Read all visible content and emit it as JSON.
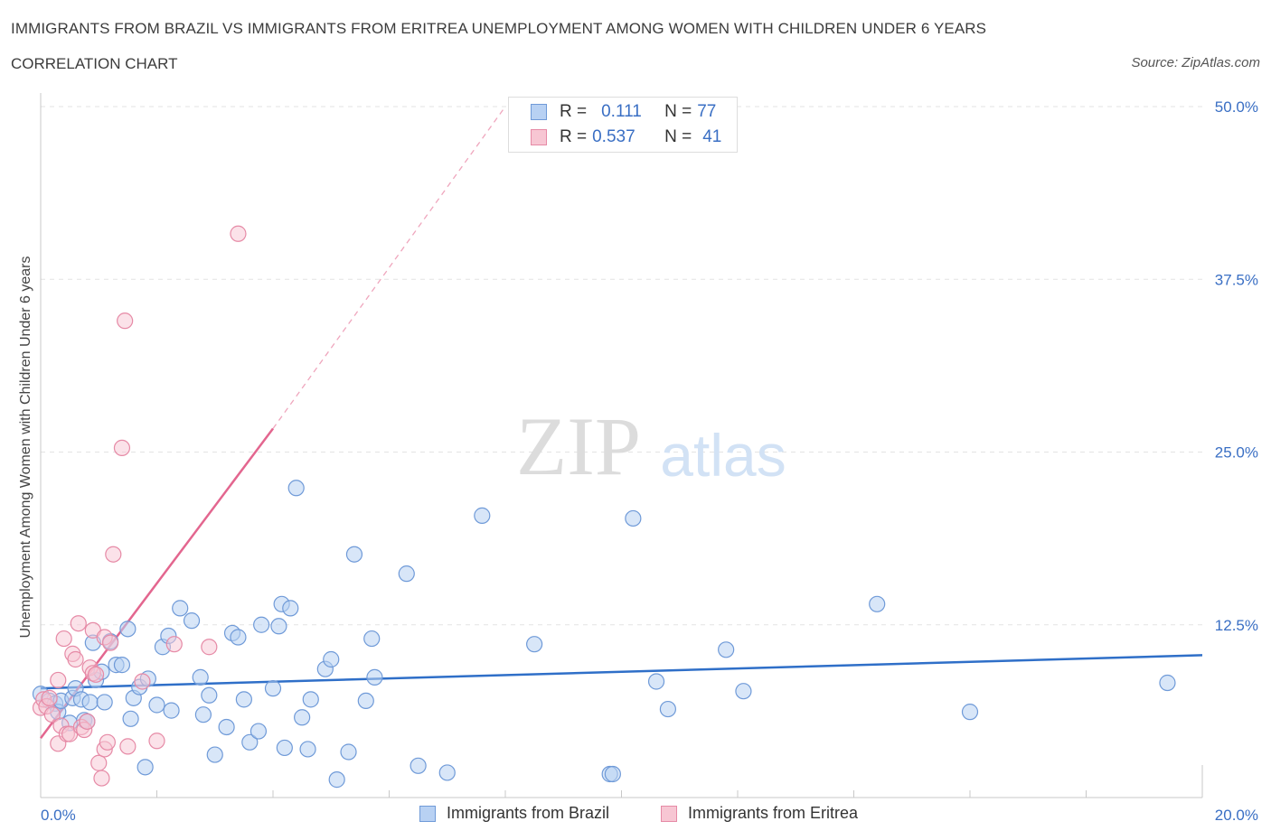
{
  "header": {
    "title": "IMMIGRANTS FROM BRAZIL VS IMMIGRANTS FROM ERITREA UNEMPLOYMENT AMONG WOMEN WITH CHILDREN UNDER 6 YEARS",
    "subtitle": "CORRELATION CHART",
    "source": "Source: ZipAtlas.com"
  },
  "watermark": {
    "zip": "ZIP",
    "atlas": "atlas"
  },
  "legend": {
    "brazil": {
      "r_label": "R =",
      "r_value": "0.111",
      "n_label": "N =",
      "n_value": "77"
    },
    "eritrea": {
      "r_label": "R =",
      "r_value": "0.537",
      "n_label": "N =",
      "n_value": "41"
    }
  },
  "colors": {
    "brazil_fill": "#b8d1f3",
    "brazil_stroke": "#6f9ad8",
    "brazil_line": "#2f6fc8",
    "eritrea_fill": "#f7c6d3",
    "eritrea_stroke": "#e68aa6",
    "eritrea_line": "#e3668f",
    "tick_label": "#3a6fc4",
    "grid": "#e3e3e3"
  },
  "chart_data": {
    "type": "scatter",
    "title": "IMMIGRANTS FROM BRAZIL VS IMMIGRANTS FROM ERITREA UNEMPLOYMENT AMONG WOMEN WITH CHILDREN UNDER 6 YEARS",
    "xlabel": "",
    "ylabel": "Unemployment Among Women with Children Under 6 years",
    "xlim": [
      0,
      20
    ],
    "ylim": [
      0,
      50
    ],
    "x_tick_labels": [
      "0.0%",
      "20.0%"
    ],
    "y_ticks": [
      12.5,
      25.0,
      37.5,
      50.0
    ],
    "y_tick_labels": [
      "12.5%",
      "25.0%",
      "37.5%",
      "50.0%"
    ],
    "grid": true,
    "legend_position": "top-center",
    "series": [
      {
        "name": "Immigrants from Brazil",
        "r": 0.111,
        "n": 77,
        "trend": {
          "x": [
            0,
            20
          ],
          "y": [
            7.9,
            10.3
          ],
          "dashed_extension": false
        },
        "points": [
          [
            0.0,
            7.5
          ],
          [
            0.15,
            7.0
          ],
          [
            0.25,
            6.8
          ],
          [
            0.3,
            6.2
          ],
          [
            0.35,
            7.0
          ],
          [
            0.5,
            5.4
          ],
          [
            0.55,
            7.2
          ],
          [
            0.6,
            7.9
          ],
          [
            0.7,
            7.1
          ],
          [
            0.75,
            5.6
          ],
          [
            0.8,
            5.5
          ],
          [
            0.85,
            6.9
          ],
          [
            0.9,
            11.2
          ],
          [
            0.95,
            8.5
          ],
          [
            1.05,
            9.1
          ],
          [
            1.1,
            6.9
          ],
          [
            1.2,
            11.3
          ],
          [
            1.3,
            9.6
          ],
          [
            1.4,
            9.6
          ],
          [
            1.5,
            12.2
          ],
          [
            1.55,
            5.7
          ],
          [
            1.6,
            7.2
          ],
          [
            1.7,
            8.0
          ],
          [
            1.8,
            2.2
          ],
          [
            1.85,
            8.6
          ],
          [
            2.0,
            6.7
          ],
          [
            2.1,
            10.9
          ],
          [
            2.2,
            11.7
          ],
          [
            2.25,
            6.3
          ],
          [
            2.4,
            13.7
          ],
          [
            2.6,
            12.8
          ],
          [
            2.75,
            8.7
          ],
          [
            2.8,
            6.0
          ],
          [
            2.9,
            7.4
          ],
          [
            3.0,
            3.1
          ],
          [
            3.2,
            5.1
          ],
          [
            3.3,
            11.9
          ],
          [
            3.4,
            11.6
          ],
          [
            3.5,
            7.1
          ],
          [
            3.6,
            4.0
          ],
          [
            3.75,
            4.8
          ],
          [
            3.8,
            12.5
          ],
          [
            4.0,
            7.9
          ],
          [
            4.1,
            12.4
          ],
          [
            4.15,
            14.0
          ],
          [
            4.2,
            3.6
          ],
          [
            4.3,
            13.7
          ],
          [
            4.4,
            22.4
          ],
          [
            4.5,
            5.8
          ],
          [
            4.6,
            3.5
          ],
          [
            4.65,
            7.1
          ],
          [
            4.9,
            9.3
          ],
          [
            5.0,
            10.0
          ],
          [
            5.1,
            1.3
          ],
          [
            5.3,
            3.3
          ],
          [
            5.4,
            17.6
          ],
          [
            5.6,
            7.0
          ],
          [
            5.7,
            11.5
          ],
          [
            5.75,
            8.7
          ],
          [
            6.3,
            16.2
          ],
          [
            6.5,
            2.3
          ],
          [
            7.0,
            1.8
          ],
          [
            7.6,
            20.4
          ],
          [
            8.5,
            11.1
          ],
          [
            9.8,
            1.7
          ],
          [
            9.85,
            1.7
          ],
          [
            10.2,
            20.2
          ],
          [
            10.6,
            8.4
          ],
          [
            10.8,
            6.4
          ],
          [
            11.8,
            10.7
          ],
          [
            12.1,
            7.7
          ],
          [
            14.4,
            14.0
          ],
          [
            16.0,
            6.2
          ],
          [
            19.4,
            8.3
          ]
        ]
      },
      {
        "name": "Immigrants from Eritrea",
        "r": 0.537,
        "n": 41,
        "trend": {
          "x": [
            0,
            4.0
          ],
          "y": [
            4.3,
            26.7
          ],
          "dashed_extension_to": [
            8.0,
            50.0
          ]
        },
        "points": [
          [
            0.0,
            6.5
          ],
          [
            0.05,
            7.1
          ],
          [
            0.1,
            6.6
          ],
          [
            0.15,
            7.2
          ],
          [
            0.2,
            6.0
          ],
          [
            0.3,
            8.5
          ],
          [
            0.3,
            3.9
          ],
          [
            0.35,
            5.2
          ],
          [
            0.4,
            11.5
          ],
          [
            0.45,
            4.6
          ],
          [
            0.5,
            4.6
          ],
          [
            0.55,
            10.4
          ],
          [
            0.6,
            10.0
          ],
          [
            0.65,
            12.6
          ],
          [
            0.7,
            5.1
          ],
          [
            0.75,
            4.9
          ],
          [
            0.8,
            5.5
          ],
          [
            0.85,
            9.4
          ],
          [
            0.9,
            9.0
          ],
          [
            0.9,
            12.1
          ],
          [
            0.95,
            8.9
          ],
          [
            1.0,
            2.5
          ],
          [
            1.05,
            1.4
          ],
          [
            1.1,
            11.6
          ],
          [
            1.1,
            3.5
          ],
          [
            1.15,
            4.0
          ],
          [
            1.2,
            11.2
          ],
          [
            1.25,
            17.6
          ],
          [
            1.4,
            25.3
          ],
          [
            1.45,
            34.5
          ],
          [
            1.5,
            3.7
          ],
          [
            1.75,
            8.4
          ],
          [
            2.0,
            4.1
          ],
          [
            2.3,
            11.1
          ],
          [
            2.9,
            10.9
          ],
          [
            3.4,
            40.8
          ]
        ]
      }
    ]
  },
  "axes": {
    "y_axis_label": "Unemployment Among Women with Children Under 6 years",
    "x_min_label": "0.0%",
    "x_max_label": "20.0%"
  },
  "bottom_legend": {
    "brazil_label": "Immigrants from Brazil",
    "eritrea_label": "Immigrants from Eritrea"
  }
}
